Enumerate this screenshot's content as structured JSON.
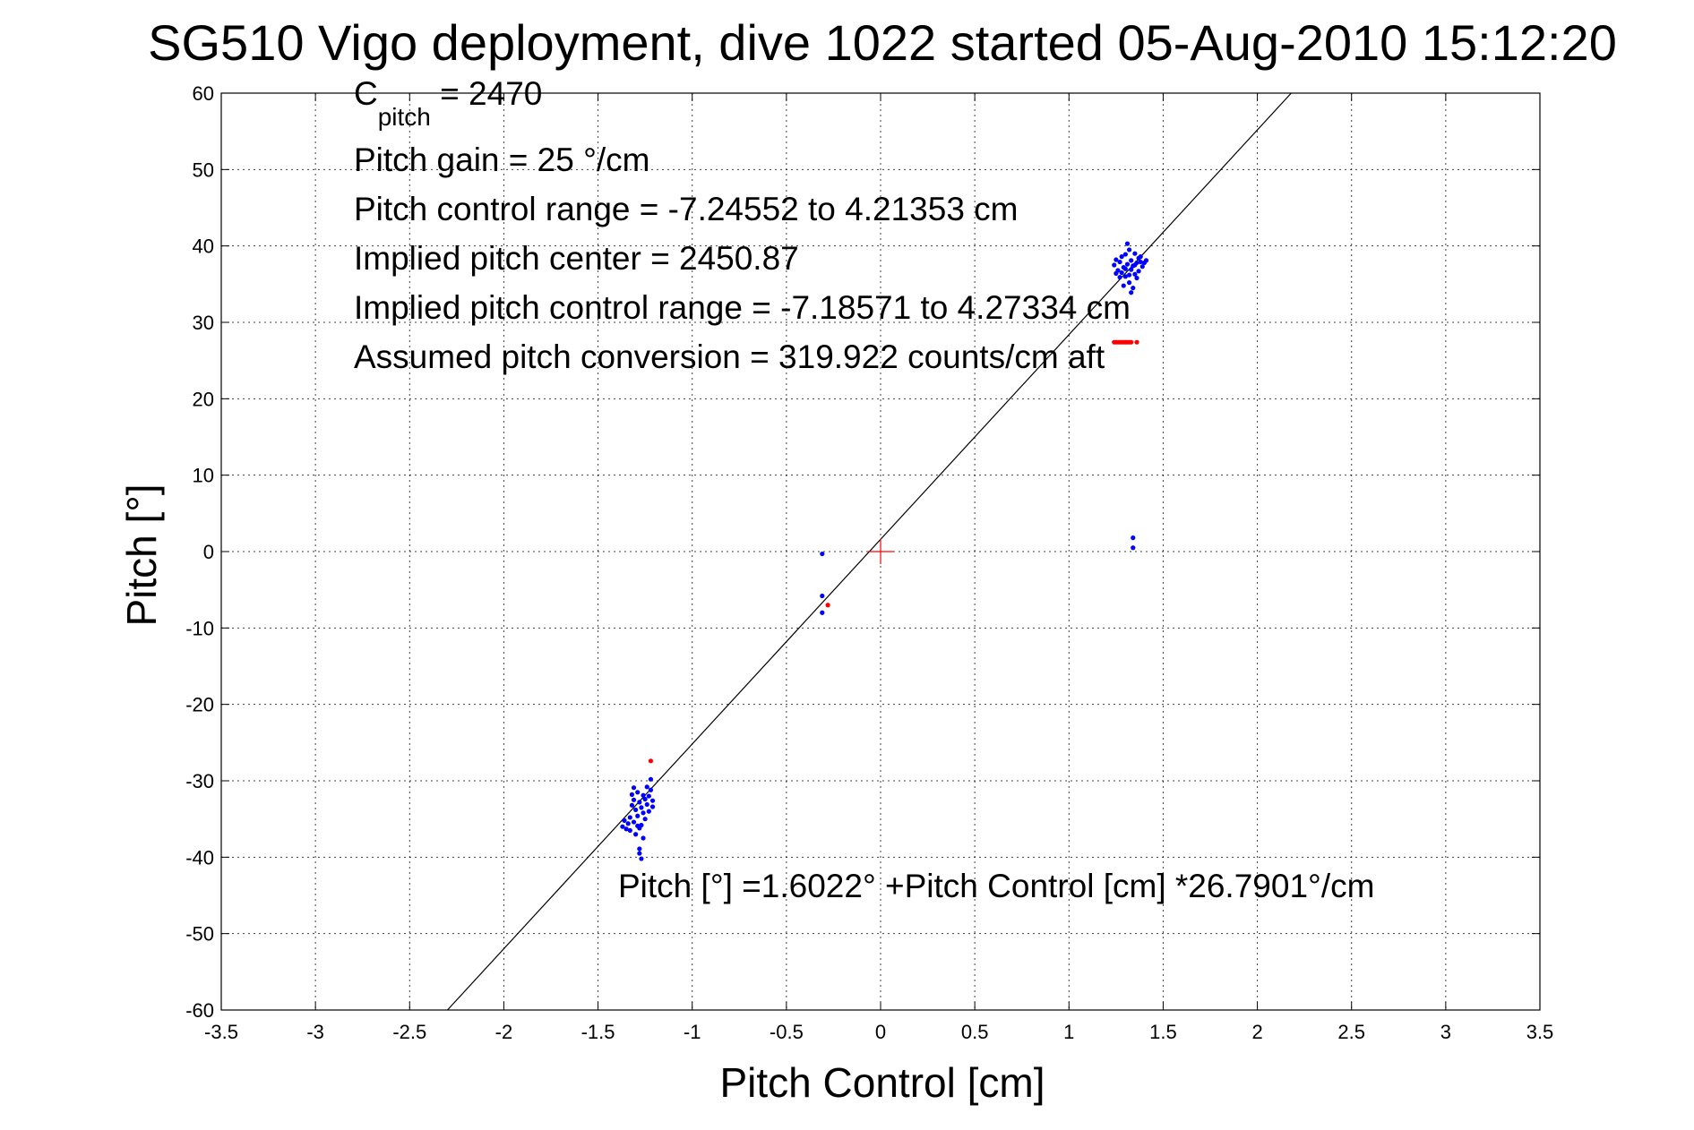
{
  "chart_data": {
    "type": "scatter",
    "title": "SG510 Vigo deployment, dive 1022 started 05-Aug-2010 15:12:20",
    "xlabel": "Pitch Control [cm]",
    "ylabel": "Pitch [°]",
    "xlim": [
      -3.5,
      3.5
    ],
    "ylim": [
      -60,
      60
    ],
    "xticks": [
      -3.5,
      -3,
      -2.5,
      -2,
      -1.5,
      -1,
      -0.5,
      0,
      0.5,
      1,
      1.5,
      2,
      2.5,
      3,
      3.5
    ],
    "xtick_labels": [
      "-3.5",
      "-3",
      "-2.5",
      "-2",
      "-1.5",
      "-1",
      "-0.5",
      "0",
      "0.5",
      "1",
      "1.5",
      "2",
      "2.5",
      "3",
      "3.5"
    ],
    "yticks": [
      60,
      50,
      40,
      30,
      20,
      10,
      0,
      -10,
      -20,
      -30,
      -40,
      -50,
      -60
    ],
    "ytick_labels": [
      "60",
      "50",
      "40",
      "30",
      "20",
      "10",
      "0",
      "-10",
      "-20",
      "-30",
      "-40",
      "-50",
      "-60"
    ],
    "grid": true,
    "colors": {
      "blue": "#0000ff",
      "red": "#ff0000",
      "line": "#000000",
      "center": "#ff0000"
    },
    "annotations": {
      "cpitch_base": "C",
      "cpitch_sub": "pitch",
      "cpitch_rest": " = 2470",
      "gain": "Pitch gain = 25 °/cm",
      "control_range": "Pitch control range = -7.24552 to 4.21353 cm",
      "implied_center": "Implied pitch center = 2450.87",
      "implied_range": "Implied pitch control range = -7.18571 to 4.27334 cm",
      "conversion": "Assumed pitch conversion = 319.922 counts/cm aft",
      "fit_equation": "Pitch [°] =1.6022° +Pitch Control [cm] *26.7901°/cm"
    },
    "fit_line": {
      "intercept": 1.6022,
      "slope": 26.7901
    },
    "center_marker": {
      "x": 0,
      "y": 0
    },
    "series": [
      {
        "color": "blue",
        "points": [
          [
            1.24,
            37.5
          ],
          [
            1.25,
            38.2
          ],
          [
            1.26,
            36.8
          ],
          [
            1.27,
            37.9
          ],
          [
            1.28,
            36.5
          ],
          [
            1.28,
            38.6
          ],
          [
            1.29,
            37.2
          ],
          [
            1.3,
            36.0
          ],
          [
            1.3,
            38.9
          ],
          [
            1.31,
            37.6
          ],
          [
            1.32,
            35.2
          ],
          [
            1.32,
            39.5
          ],
          [
            1.33,
            36.9
          ],
          [
            1.33,
            38.1
          ],
          [
            1.34,
            34.5
          ],
          [
            1.34,
            37.4
          ],
          [
            1.35,
            36.3
          ],
          [
            1.35,
            39.0
          ],
          [
            1.36,
            37.8
          ],
          [
            1.36,
            35.8
          ],
          [
            1.37,
            38.4
          ],
          [
            1.37,
            36.7
          ],
          [
            1.38,
            37.9
          ],
          [
            1.38,
            38.6
          ],
          [
            1.39,
            37.3
          ],
          [
            1.4,
            37.8
          ],
          [
            1.41,
            38.1
          ],
          [
            1.31,
            40.3
          ],
          [
            1.29,
            34.8
          ],
          [
            1.33,
            33.9
          ],
          [
            1.25,
            36.4
          ],
          [
            1.27,
            35.9
          ],
          [
            1.3,
            37.0
          ],
          [
            1.35,
            37.5
          ],
          [
            1.32,
            36.2
          ],
          [
            -1.37,
            -36.0
          ],
          [
            -1.36,
            -35.2
          ],
          [
            -1.35,
            -36.3
          ],
          [
            -1.34,
            -35.6
          ],
          [
            -1.33,
            -36.5
          ],
          [
            -1.33,
            -34.8
          ],
          [
            -1.32,
            -33.2
          ],
          [
            -1.32,
            -31.8
          ],
          [
            -1.31,
            -32.5
          ],
          [
            -1.31,
            -35.4
          ],
          [
            -1.3,
            -33.8
          ],
          [
            -1.3,
            -37.0
          ],
          [
            -1.29,
            -31.5
          ],
          [
            -1.29,
            -34.6
          ],
          [
            -1.28,
            -32.8
          ],
          [
            -1.28,
            -36.2
          ],
          [
            -1.28,
            -38.9
          ],
          [
            -1.27,
            -33.5
          ],
          [
            -1.27,
            -35.8
          ],
          [
            -1.27,
            -40.2
          ],
          [
            -1.26,
            -31.9
          ],
          [
            -1.26,
            -34.2
          ],
          [
            -1.25,
            -32.4
          ],
          [
            -1.25,
            -35.0
          ],
          [
            -1.24,
            -33.1
          ],
          [
            -1.24,
            -30.8
          ],
          [
            -1.23,
            -32.0
          ],
          [
            -1.23,
            -34.0
          ],
          [
            -1.22,
            -31.2
          ],
          [
            -1.22,
            -29.8
          ],
          [
            -1.21,
            -32.6
          ],
          [
            -1.21,
            -33.4
          ],
          [
            -1.26,
            -37.5
          ],
          [
            -1.29,
            -35.9
          ],
          [
            -1.31,
            -30.9
          ],
          [
            -1.28,
            -39.5
          ],
          [
            -0.31,
            -0.3
          ],
          [
            -0.31,
            -5.8
          ],
          [
            -0.31,
            -8.0
          ],
          [
            1.34,
            1.8
          ],
          [
            1.34,
            0.5
          ]
        ]
      },
      {
        "color": "red",
        "points": [
          [
            1.24,
            27.4
          ],
          [
            1.25,
            27.4
          ],
          [
            1.26,
            27.4
          ],
          [
            1.27,
            27.4
          ],
          [
            1.28,
            27.4
          ],
          [
            1.29,
            27.4
          ],
          [
            1.3,
            27.4
          ],
          [
            1.31,
            27.4
          ],
          [
            1.32,
            27.4
          ],
          [
            1.33,
            27.4
          ],
          [
            1.36,
            27.4
          ],
          [
            -1.22,
            -27.4
          ],
          [
            -0.28,
            -7.0
          ]
        ]
      }
    ]
  }
}
